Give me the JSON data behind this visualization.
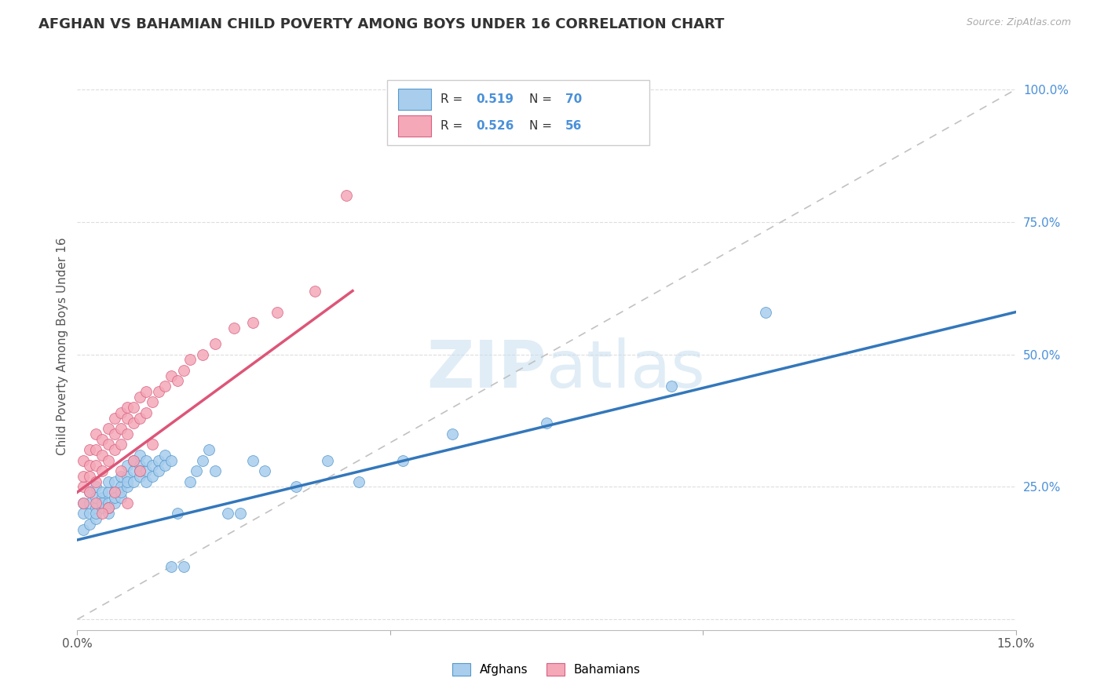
{
  "title": "AFGHAN VS BAHAMIAN CHILD POVERTY AMONG BOYS UNDER 16 CORRELATION CHART",
  "source": "Source: ZipAtlas.com",
  "ylabel": "Child Poverty Among Boys Under 16",
  "xlim": [
    0.0,
    0.15
  ],
  "ylim": [
    -0.02,
    1.05
  ],
  "plot_ylim": [
    0.0,
    1.0
  ],
  "afghans_R": "0.519",
  "afghans_N": "70",
  "bahamians_R": "0.526",
  "bahamians_N": "56",
  "afghan_color": "#A8CDED",
  "bahamian_color": "#F4A8B8",
  "afghan_edge_color": "#5599CC",
  "bahamian_edge_color": "#D96080",
  "afghan_line_color": "#3377BB",
  "bahamian_line_color": "#DD5577",
  "diagonal_color": "#BBBBBB",
  "watermark_color": "#C8DFF0",
  "background_color": "#FFFFFF",
  "grid_color": "#DDDDDD",
  "title_fontsize": 13,
  "label_fontsize": 11,
  "tick_fontsize": 11,
  "right_tick_color": "#4A90D9",
  "afghans_x": [
    0.001,
    0.001,
    0.001,
    0.002,
    0.002,
    0.002,
    0.002,
    0.003,
    0.003,
    0.003,
    0.003,
    0.003,
    0.004,
    0.004,
    0.004,
    0.004,
    0.005,
    0.005,
    0.005,
    0.005,
    0.005,
    0.006,
    0.006,
    0.006,
    0.006,
    0.007,
    0.007,
    0.007,
    0.007,
    0.008,
    0.008,
    0.008,
    0.008,
    0.009,
    0.009,
    0.009,
    0.01,
    0.01,
    0.01,
    0.01,
    0.011,
    0.011,
    0.011,
    0.012,
    0.012,
    0.013,
    0.013,
    0.014,
    0.014,
    0.015,
    0.015,
    0.016,
    0.017,
    0.018,
    0.019,
    0.02,
    0.021,
    0.022,
    0.024,
    0.026,
    0.028,
    0.03,
    0.035,
    0.04,
    0.045,
    0.052,
    0.06,
    0.075,
    0.095,
    0.11
  ],
  "afghans_y": [
    0.17,
    0.2,
    0.22,
    0.18,
    0.2,
    0.22,
    0.24,
    0.19,
    0.21,
    0.23,
    0.25,
    0.2,
    0.21,
    0.23,
    0.22,
    0.24,
    0.2,
    0.22,
    0.24,
    0.26,
    0.21,
    0.22,
    0.24,
    0.26,
    0.23,
    0.23,
    0.25,
    0.27,
    0.24,
    0.25,
    0.27,
    0.29,
    0.26,
    0.26,
    0.28,
    0.3,
    0.27,
    0.29,
    0.31,
    0.28,
    0.28,
    0.3,
    0.26,
    0.29,
    0.27,
    0.3,
    0.28,
    0.31,
    0.29,
    0.3,
    0.1,
    0.2,
    0.1,
    0.26,
    0.28,
    0.3,
    0.32,
    0.28,
    0.2,
    0.2,
    0.3,
    0.28,
    0.25,
    0.3,
    0.26,
    0.3,
    0.35,
    0.37,
    0.44,
    0.58
  ],
  "bahamians_x": [
    0.001,
    0.001,
    0.001,
    0.001,
    0.002,
    0.002,
    0.002,
    0.002,
    0.003,
    0.003,
    0.003,
    0.003,
    0.004,
    0.004,
    0.004,
    0.005,
    0.005,
    0.005,
    0.006,
    0.006,
    0.006,
    0.007,
    0.007,
    0.007,
    0.008,
    0.008,
    0.008,
    0.009,
    0.009,
    0.01,
    0.01,
    0.011,
    0.011,
    0.012,
    0.013,
    0.014,
    0.015,
    0.016,
    0.017,
    0.018,
    0.02,
    0.022,
    0.025,
    0.028,
    0.032,
    0.038,
    0.012,
    0.008,
    0.01,
    0.006,
    0.005,
    0.004,
    0.003,
    0.007,
    0.009,
    0.043
  ],
  "bahamians_y": [
    0.22,
    0.25,
    0.27,
    0.3,
    0.24,
    0.27,
    0.29,
    0.32,
    0.26,
    0.29,
    0.32,
    0.35,
    0.28,
    0.31,
    0.34,
    0.3,
    0.33,
    0.36,
    0.32,
    0.35,
    0.38,
    0.33,
    0.36,
    0.39,
    0.35,
    0.38,
    0.4,
    0.37,
    0.4,
    0.38,
    0.42,
    0.39,
    0.43,
    0.41,
    0.43,
    0.44,
    0.46,
    0.45,
    0.47,
    0.49,
    0.5,
    0.52,
    0.55,
    0.56,
    0.58,
    0.62,
    0.33,
    0.22,
    0.28,
    0.24,
    0.21,
    0.2,
    0.22,
    0.28,
    0.3,
    0.8
  ],
  "afghan_line_x0": 0.0,
  "afghan_line_y0": 0.15,
  "afghan_line_x1": 0.15,
  "afghan_line_y1": 0.58,
  "bahamian_line_x0": 0.0,
  "bahamian_line_y0": 0.24,
  "bahamian_line_x1": 0.044,
  "bahamian_line_y1": 0.62
}
